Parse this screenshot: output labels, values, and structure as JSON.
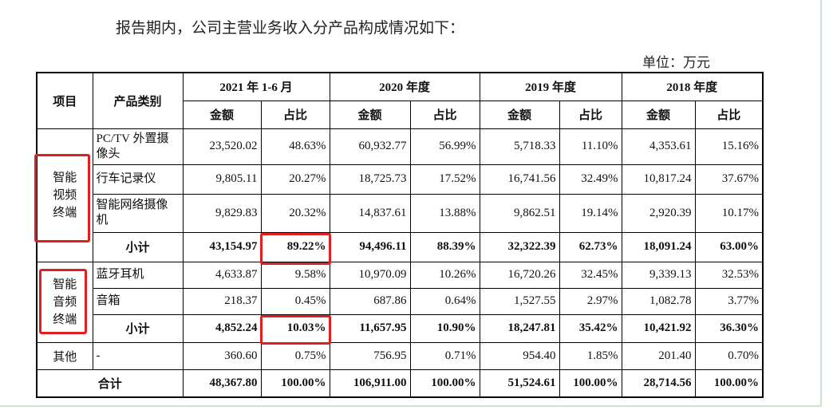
{
  "header": {
    "intro": "报告期内，公司主营业务收入分产品构成情况如下：",
    "unit": "单位：万元"
  },
  "table": {
    "item_header": "项目",
    "category_header": "产品类别",
    "periods": [
      "2021 年 1-6 月",
      "2020 年度",
      "2019 年度",
      "2018 年度"
    ],
    "subheaders": [
      "金额",
      "占比",
      "金额",
      "占比",
      "金额",
      "占比",
      "金额",
      "占比"
    ],
    "groups": [
      {
        "label": "智能视频终端",
        "rows": [
          {
            "category": "PC/TV 外置摄像头",
            "values": [
              "23,520.02",
              "48.63%",
              "60,932.77",
              "56.99%",
              "5,718.33",
              "11.10%",
              "4,353.61",
              "15.16%"
            ]
          },
          {
            "category": "行车记录仪",
            "values": [
              "9,805.11",
              "20.27%",
              "18,725.73",
              "17.52%",
              "16,741.56",
              "32.49%",
              "10,817.24",
              "37.67%"
            ]
          },
          {
            "category": "智能网络摄像机",
            "values": [
              "9,829.83",
              "20.32%",
              "14,837.61",
              "13.88%",
              "9,862.51",
              "19.14%",
              "2,920.39",
              "10.17%"
            ]
          }
        ],
        "subtotal": {
          "label": "小计",
          "values": [
            "43,154.97",
            "89.22%",
            "94,496.11",
            "88.39%",
            "32,322.39",
            "62.73%",
            "18,091.24",
            "63.00%"
          ]
        }
      },
      {
        "label": "智能音频终端",
        "rows": [
          {
            "category": "蓝牙耳机",
            "values": [
              "4,633.87",
              "9.58%",
              "10,970.09",
              "10.26%",
              "16,720.26",
              "32.45%",
              "9,339.13",
              "32.53%"
            ]
          },
          {
            "category": "音箱",
            "values": [
              "218.37",
              "0.45%",
              "687.86",
              "0.64%",
              "1,527.55",
              "2.97%",
              "1,082.78",
              "3.77%"
            ]
          }
        ],
        "subtotal": {
          "label": "小计",
          "values": [
            "4,852.24",
            "10.03%",
            "11,657.95",
            "10.90%",
            "18,247.81",
            "35.42%",
            "10,421.92",
            "36.30%"
          ]
        }
      }
    ],
    "other": {
      "label": "其他",
      "category": "-",
      "values": [
        "360.60",
        "0.75%",
        "756.95",
        "0.71%",
        "954.40",
        "1.85%",
        "201.40",
        "0.70%"
      ]
    },
    "total": {
      "label": "合计",
      "values": [
        "48,367.80",
        "100.00%",
        "106,911.00",
        "100.00%",
        "51,524.61",
        "100.00%",
        "28,714.56",
        "100.00%"
      ]
    }
  }
}
